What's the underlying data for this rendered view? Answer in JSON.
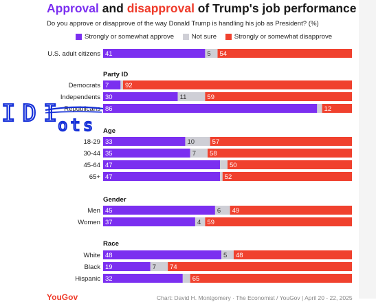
{
  "title": {
    "part1": "Approval",
    "part2": " and ",
    "part3": "disapproval",
    "part4": " of Trump's job performance"
  },
  "subtitle": "Do you approve or disapprove of the way Donald Trump is handling his job as President? (%)",
  "colors": {
    "approve": "#7b2ff0",
    "not_sure": "#cfcfd6",
    "disapprove": "#f0412e"
  },
  "chart_data": {
    "type": "bar",
    "orientation": "horizontal",
    "stacked": true,
    "legend": {
      "placement": "top",
      "entries": [
        "Strongly or somewhat approve",
        "Not sure",
        "Strongly or somewhat disapprove"
      ]
    },
    "series_names": [
      "Strongly or somewhat approve",
      "Not sure",
      "Strongly or somewhat disapprove"
    ],
    "groups": [
      {
        "name": "",
        "rows": [
          {
            "label": "U.S. adult citizens",
            "values": [
              41,
              5,
              54
            ]
          }
        ]
      },
      {
        "name": "Party ID",
        "rows": [
          {
            "label": "Democrats",
            "values": [
              7,
              1,
              92
            ]
          },
          {
            "label": "Independents",
            "values": [
              30,
              11,
              59
            ]
          },
          {
            "label": "Republicans",
            "values": [
              86,
              2,
              12
            ]
          }
        ]
      },
      {
        "name": "Age",
        "rows": [
          {
            "label": "18-29",
            "values": [
              33,
              10,
              57
            ]
          },
          {
            "label": "30-44",
            "values": [
              35,
              7,
              58
            ]
          },
          {
            "label": "45-64",
            "values": [
              47,
              3,
              50
            ]
          },
          {
            "label": "65+",
            "values": [
              47,
              1,
              52
            ]
          }
        ]
      },
      {
        "name": "Gender",
        "rows": [
          {
            "label": "Men",
            "values": [
              45,
              6,
              49
            ]
          },
          {
            "label": "Women",
            "values": [
              37,
              4,
              59
            ]
          }
        ]
      },
      {
        "name": "Race",
        "rows": [
          {
            "label": "White",
            "values": [
              48,
              5,
              48
            ]
          },
          {
            "label": "Black",
            "values": [
              19,
              7,
              74
            ]
          },
          {
            "label": "Hispanic",
            "values": [
              32,
              3,
              65
            ]
          }
        ]
      }
    ],
    "shown_value_labels": [
      [
        [
          41,
          5,
          54
        ]
      ],
      [
        [
          7,
          null,
          92
        ],
        [
          30,
          11,
          59
        ],
        [
          86,
          null,
          12
        ]
      ],
      [
        [
          33,
          10,
          57
        ],
        [
          35,
          7,
          58
        ],
        [
          47,
          null,
          50
        ],
        [
          47,
          null,
          52
        ]
      ],
      [
        [
          45,
          6,
          49
        ],
        [
          37,
          4,
          59
        ]
      ],
      [
        [
          48,
          5,
          48
        ],
        [
          19,
          7,
          74
        ],
        [
          32,
          null,
          65
        ]
      ]
    ]
  },
  "annotation": {
    "line1": "IDI",
    "line2": "ots"
  },
  "footer": {
    "logo": "YouGov",
    "credit": "Chart: David H. Montgomery · The Economist / YouGov | April 20 - 22, 2025"
  }
}
